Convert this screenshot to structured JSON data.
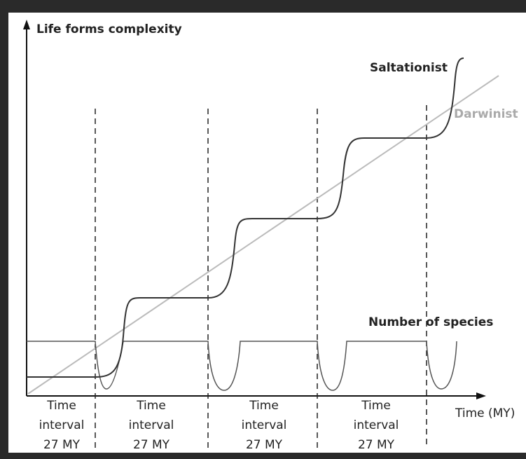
{
  "axes": {
    "y_label": "Life forms complexity",
    "x_label": "Time (MY)"
  },
  "curves": {
    "saltationist": "Saltationist",
    "darwinist": "Darwinist",
    "species": "Number of species"
  },
  "intervals": [
    {
      "line1": "Time",
      "line2": "interval",
      "line3": "27 MY"
    },
    {
      "line1": "Time",
      "line2": "interval",
      "line3": "27 MY"
    },
    {
      "line1": "Time",
      "line2": "interval",
      "line3": "27 MY"
    },
    {
      "line1": "Time",
      "line2": "interval",
      "line3": "27 MY"
    }
  ]
}
